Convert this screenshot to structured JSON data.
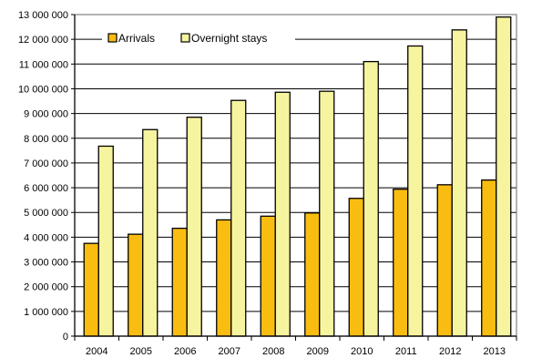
{
  "chart_data": {
    "type": "bar",
    "categories": [
      "2004",
      "2005",
      "2006",
      "2007",
      "2008",
      "2009",
      "2010",
      "2011",
      "2012",
      "2013"
    ],
    "series": [
      {
        "name": "Arrivals",
        "color": "#f9bd12",
        "values": [
          3750000,
          4120000,
          4360000,
          4700000,
          4850000,
          4980000,
          5570000,
          5940000,
          6120000,
          6310000
        ]
      },
      {
        "name": "Overnight stays",
        "color": "#f7f4a0",
        "values": [
          7680000,
          8350000,
          8850000,
          9530000,
          9860000,
          9900000,
          11100000,
          11730000,
          12380000,
          12900000
        ]
      }
    ],
    "y_ticks": [
      "0",
      "1 000 000",
      "2 000 000",
      "3 000 000",
      "4 000 000",
      "5 000 000",
      "6 000 000",
      "7 000 000",
      "8 000 000",
      "9 000 000",
      "10 000 000",
      "11 000 000",
      "12 000 000",
      "13 000 000"
    ],
    "ylim": [
      0,
      13000000
    ],
    "grid": true,
    "legend_position": "top-left"
  }
}
